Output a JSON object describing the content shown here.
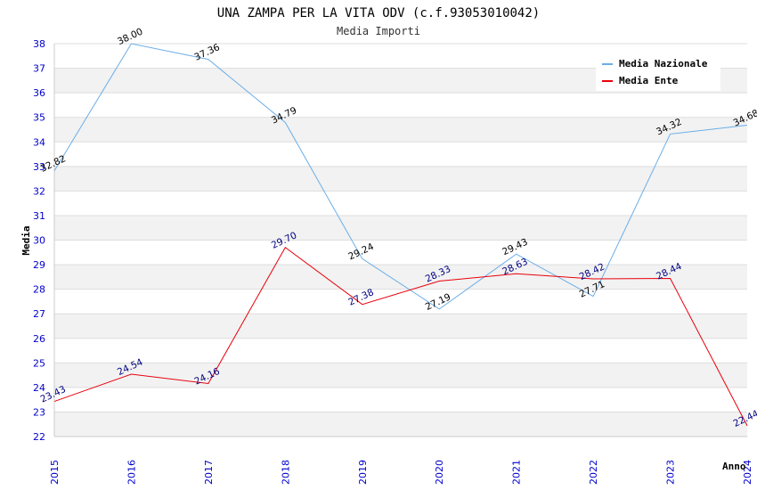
{
  "chart_data": {
    "type": "line",
    "title": "UNA ZAMPA PER LA VITA ODV (c.f.93053010042)",
    "subtitle": "Media Importi",
    "xlabel": "Anno",
    "ylabel": "Media",
    "x": [
      "2015",
      "2016",
      "2017",
      "2018",
      "2019",
      "2020",
      "2021",
      "2022",
      "2023",
      "2024"
    ],
    "ylim": [
      22,
      38
    ],
    "yticks": [
      "22",
      "23",
      "24",
      "25",
      "26",
      "27",
      "28",
      "29",
      "30",
      "31",
      "32",
      "33",
      "34",
      "35",
      "36",
      "37",
      "38"
    ],
    "legend_position": "top-right",
    "series": [
      {
        "name": "Media Nazionale",
        "color": "#6aaee8",
        "label_color": "#000000",
        "values": [
          32.82,
          38.0,
          37.36,
          34.79,
          29.24,
          27.19,
          29.43,
          27.71,
          34.32,
          34.68
        ],
        "labels": [
          "32.82",
          "38.00",
          "37.36",
          "34.79",
          "29.24",
          "27.19",
          "29.43",
          "27.71",
          "34.32",
          "34.68"
        ]
      },
      {
        "name": "Media Ente",
        "color": "#e8000b",
        "label_color": "#000080",
        "values": [
          23.43,
          24.54,
          24.16,
          29.7,
          27.38,
          28.33,
          28.63,
          28.42,
          28.44,
          22.44
        ],
        "labels": [
          "23.43",
          "24.54",
          "24.16",
          "29.70",
          "27.38",
          "28.33",
          "28.63",
          "28.42",
          "28.44",
          "22.44"
        ]
      }
    ]
  }
}
